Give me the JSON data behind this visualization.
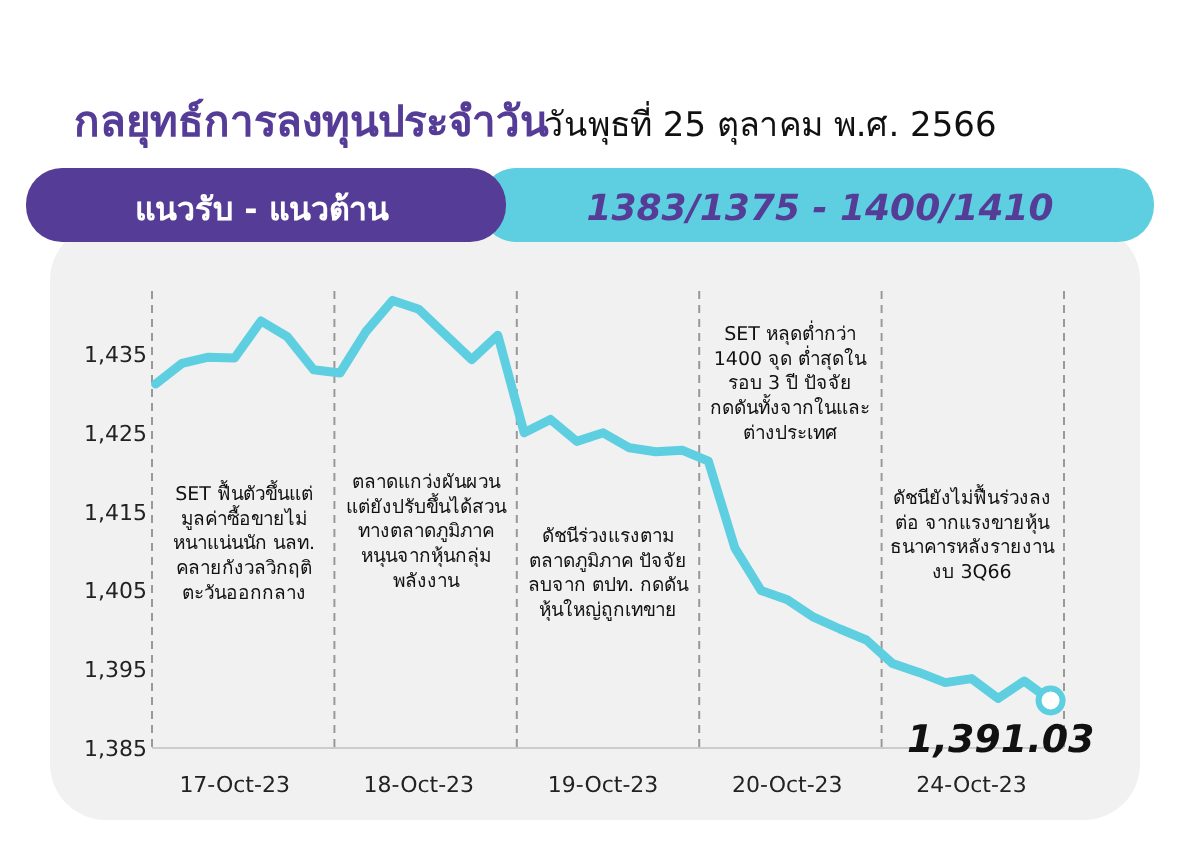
{
  "chart_data": {
    "type": "line",
    "title": "กลยุทธ์การลงทุนประจำวัน",
    "subtitle": "วันพุธที่ 25 ตุลาคม พ.ศ. 2566",
    "annotations": [
      "แนวรับ - แนวต้าน",
      "1383/1375 - 1400/1410",
      "SET ฟื้นตัวขึ้นแต่\nมูลค่าซื้อขายไม่\nหนาแน่นนัก นลท.\nคลายกังวลวิกฤติ\nตะวันออกกลาง",
      "ตลาดแกว่งผันผวน\nแต่ยังปรับขึ้นได้สวน\nทางตลาดภูมิภาค\nหนุนจากหุ้นกลุ่ม\nพลังงาน",
      "ดัชนีร่วงแรงตาม\nตลาดภูมิภาค ปัจจัย\nลบจาก ตปท. กดดัน\nหุ้นใหญ่ถูกเทขาย",
      "SET หลุดต่ำกว่า\n1400 จุด ต่ำสุดใน\nรอบ 3 ปี ปัจจัย\nกดดันทั้งจากในและ\nต่างประเทศ",
      "ดัชนียังไม่ฟื้นร่วงลง\nต่อ จากแรงขายหุ้น\nธนาคารหลังรายงาน\nงบ 3Q66"
    ],
    "series": [
      {
        "type": "line",
        "color": "#5ecfe0",
        "marker": "none",
        "values": [
          1431.2,
          1433.8,
          1434.6,
          1434.5,
          1439.2,
          1437.2,
          1433.0,
          1432.6,
          1437.9,
          1441.8,
          1440.7,
          1437.5,
          1434.3,
          1437.4,
          1425.0,
          1426.7,
          1423.9,
          1425.0,
          1423.1,
          1422.6,
          1422.8,
          1421.4,
          1410.4,
          1405.0,
          1403.8,
          1401.6,
          1400.1,
          1398.7,
          1395.7,
          1394.6,
          1393.3,
          1393.8,
          1391.3,
          1393.5,
          1391.03
        ]
      },
      {
        "type": "scatter",
        "color": "#5ecfe0",
        "marker": "circle",
        "values": [
          null,
          null,
          null,
          null,
          null,
          null,
          null,
          null,
          null,
          null,
          null,
          null,
          null,
          null,
          null,
          null,
          null,
          null,
          null,
          null,
          null,
          null,
          null,
          null,
          null,
          null,
          null,
          null,
          null,
          null,
          null,
          null,
          null,
          null,
          1391.03
        ],
        "value_labels": [
          null,
          null,
          null,
          null,
          null,
          null,
          null,
          null,
          null,
          null,
          null,
          null,
          null,
          null,
          null,
          null,
          null,
          null,
          null,
          null,
          null,
          null,
          null,
          null,
          null,
          null,
          null,
          null,
          null,
          null,
          null,
          null,
          null,
          null,
          "1,391.03"
        ]
      }
    ],
    "categories": [
      null,
      null,
      null,
      "17-Oct-23",
      null,
      null,
      null,
      null,
      null,
      null,
      "18-Oct-23",
      null,
      null,
      null,
      null,
      null,
      null,
      "19-Oct-23",
      null,
      null,
      null,
      null,
      null,
      null,
      "20-Oct-23",
      null,
      null,
      null,
      null,
      null,
      null,
      "24-Oct-23",
      null,
      null,
      null
    ],
    "ylim": [
      1385,
      1443
    ],
    "yticks": [
      {
        "value": 1385,
        "label": "1,385"
      },
      {
        "value": 1395,
        "label": "1,395"
      },
      {
        "value": 1405,
        "label": "1,405"
      },
      {
        "value": 1415,
        "label": "1,415"
      },
      {
        "value": 1425,
        "label": "1,425"
      },
      {
        "value": 1435,
        "label": "1,435"
      }
    ],
    "grid": false
  }
}
